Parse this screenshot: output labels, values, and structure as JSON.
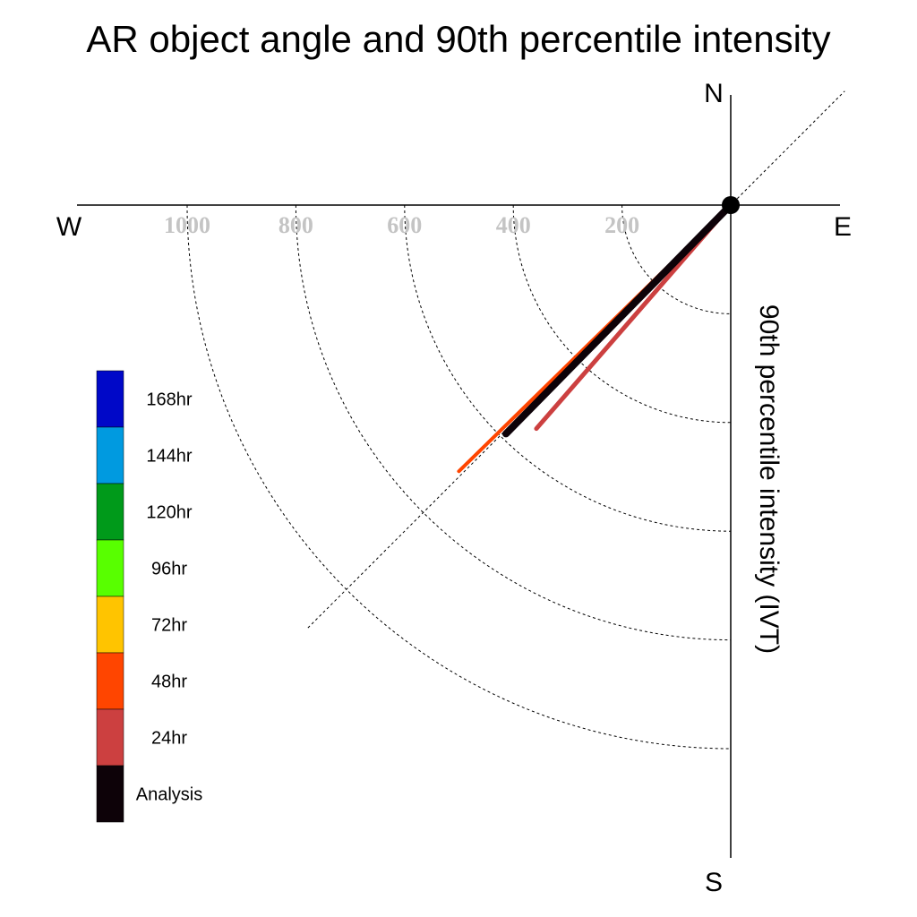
{
  "chart_data": {
    "type": "polar-vector",
    "title": "AR object angle and 90th percentile intensity",
    "ylabel": "90th percentile intensity (IVT)",
    "compass": {
      "north": "N",
      "south": "S",
      "east": "E",
      "west": "W"
    },
    "radial_ticks": [
      "200",
      "400",
      "600",
      "800",
      "1000"
    ],
    "radial_tick_values": [
      200,
      400,
      600,
      800,
      1000
    ],
    "rmax": 1100,
    "series": [
      {
        "name": "48hr",
        "angle_deg": 225.6,
        "magnitude": 700,
        "color": "#ff4500"
      },
      {
        "name": "24hr",
        "angle_deg": 221.0,
        "magnitude": 545,
        "color": "#cc4040"
      },
      {
        "name": "Analysis",
        "angle_deg": 224.5,
        "magnitude": 590,
        "color": "#0d0208"
      }
    ],
    "legend": [
      {
        "label": "168hr",
        "color": "#0008c8"
      },
      {
        "label": "144hr",
        "color": "#009ae0"
      },
      {
        "label": "120hr",
        "color": "#009a1a"
      },
      {
        "label": "96hr",
        "color": "#58ff00"
      },
      {
        "label": "72hr",
        "color": "#ffc400"
      },
      {
        "label": "48hr",
        "color": "#ff4500"
      },
      {
        "label": "24hr",
        "color": "#cc4040"
      },
      {
        "label": "Analysis",
        "color": "#0d0208"
      }
    ]
  }
}
